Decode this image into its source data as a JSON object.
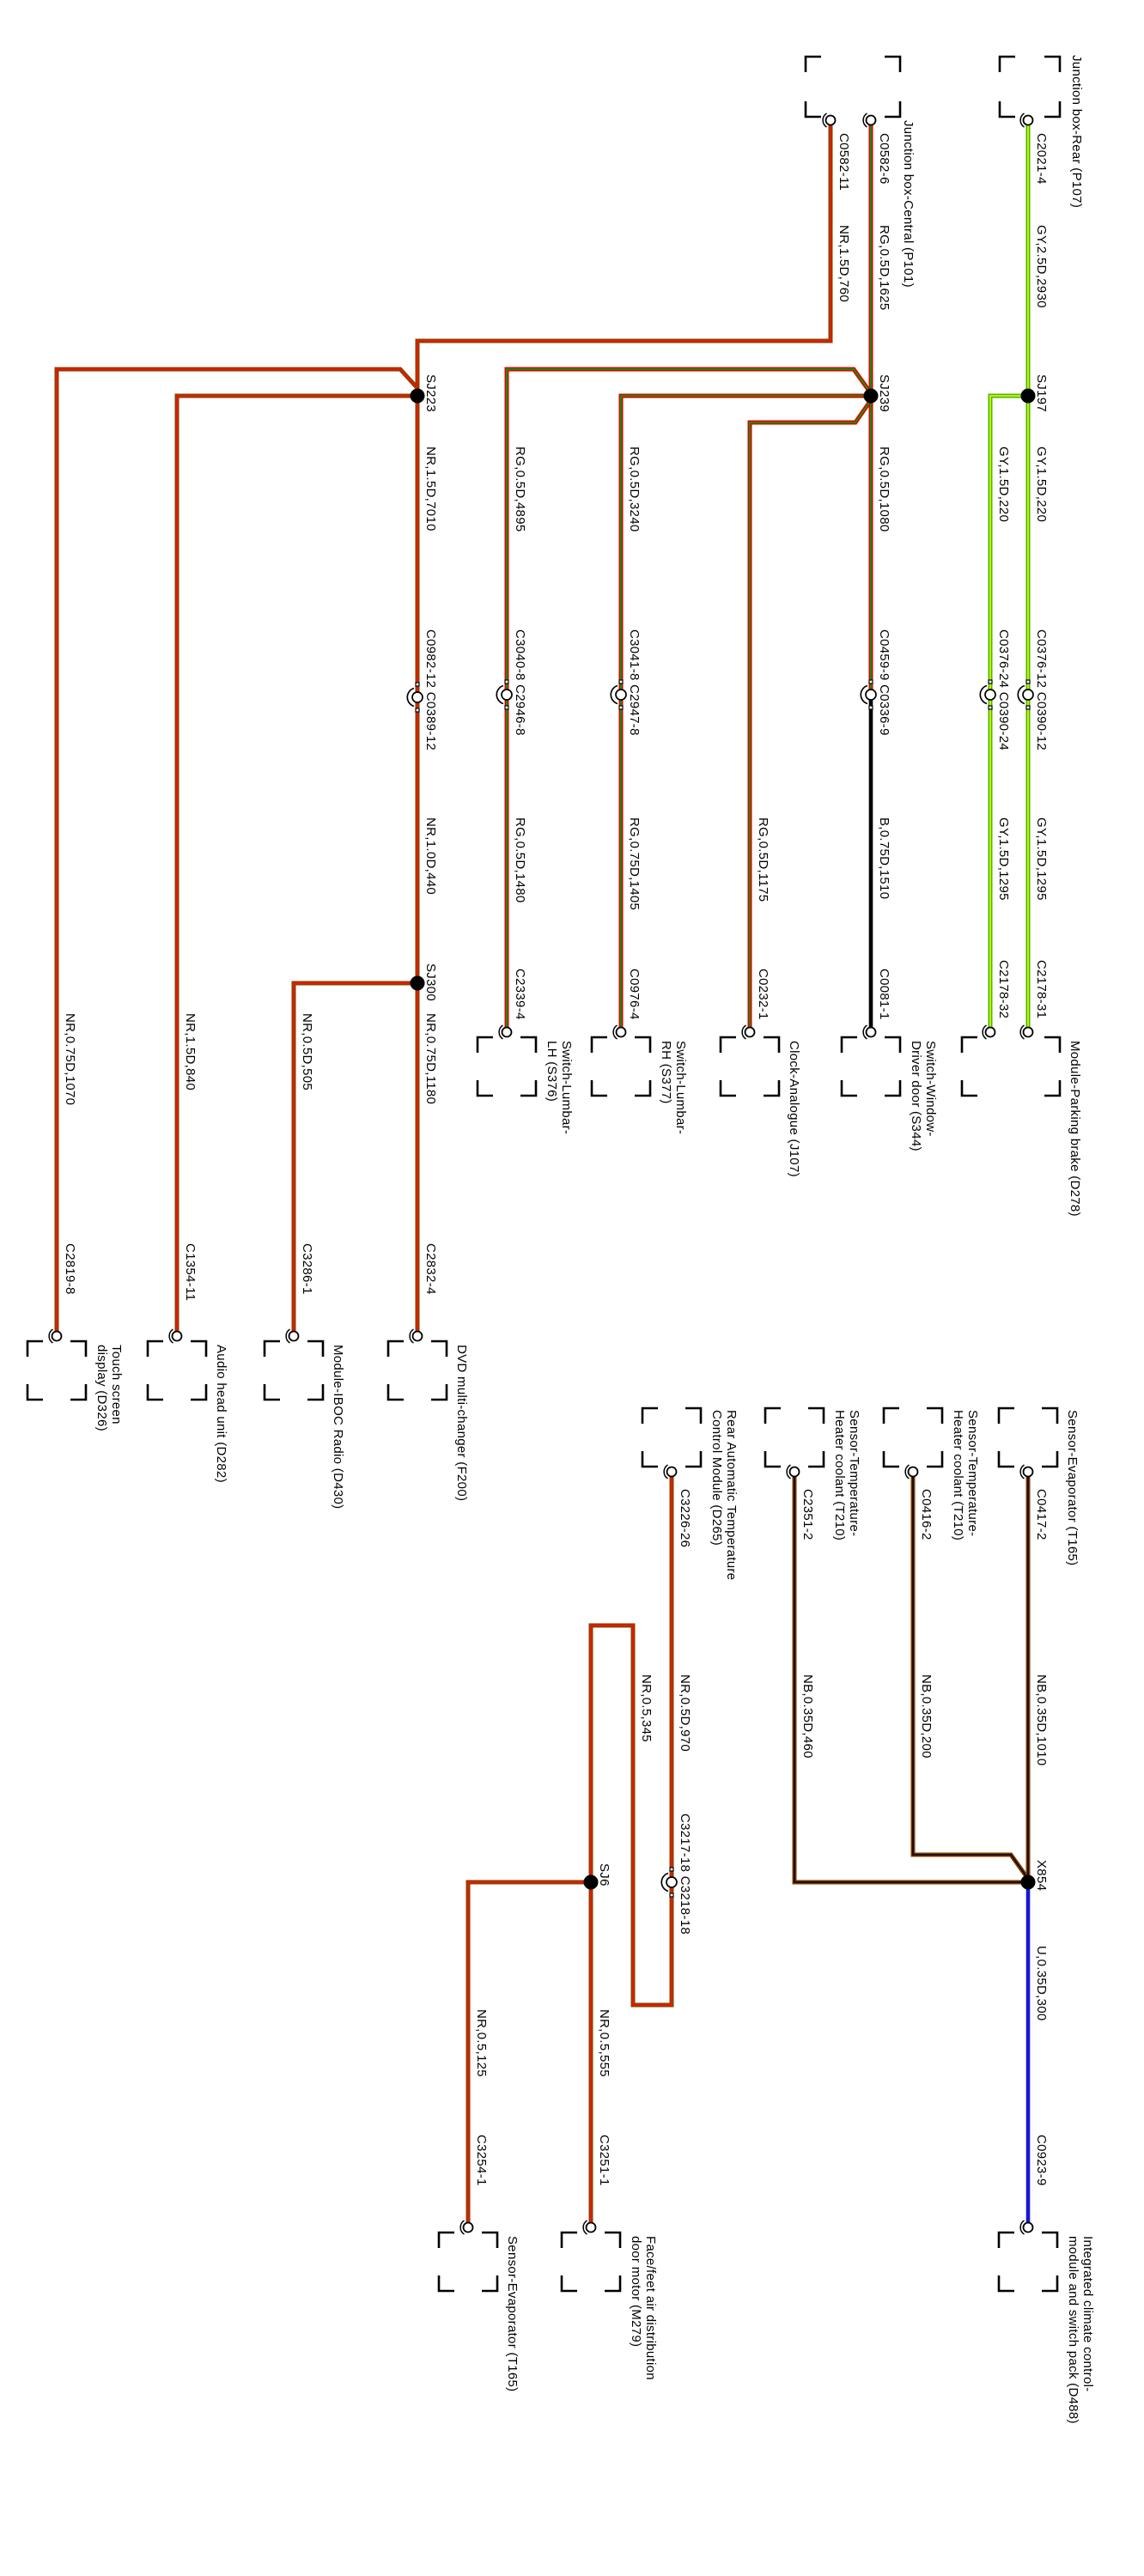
{
  "diagram_type": "automotive wiring diagram",
  "colors": {
    "wire_nr_outer": "#8B4000",
    "wire_nr_inner": "#E51A00",
    "wire_rg_outer": "#E00000",
    "wire_rg_inner": "#00A000",
    "wire_gy_outer": "#3CBE00",
    "wire_gy_inner": "#EAEA00",
    "wire_nb_outer": "#7B3A00",
    "wire_nb_inner": "#150800",
    "wire_b": "#000000",
    "wire_u": "#1616D6"
  },
  "components": {
    "p107": {
      "name": "Junction box-Rear (P107)",
      "connector": "C2021-4"
    },
    "p101": {
      "name": "Junction box-Central (P101)",
      "connector_a": "C0582-11",
      "connector_b": "C0582-6"
    },
    "d326": {
      "name_line1": "Touch screen",
      "name_line2": "display (D326)",
      "connector": "C2819-8"
    },
    "d282": {
      "name": "Audio head unit (D282)",
      "connector": "C1354-11"
    },
    "d430": {
      "name": "Module-IBOC Radio (D430)",
      "connector": "C3286-1"
    },
    "f200": {
      "name": "DVD multi-changer (F200)",
      "connector": "C2832-4"
    },
    "s376": {
      "name_line1": "Switch-Lumbar-",
      "name_line2": "LH (S376)",
      "connector": "C2339-4"
    },
    "s377": {
      "name_line1": "Switch-Lumbar-",
      "name_line2": "RH (S377)",
      "connector": "C0976-4"
    },
    "j107": {
      "name": "Clock-Analogue (J107)",
      "connector": "C0232-1"
    },
    "s344": {
      "name_line1": "Switch-Window-",
      "name_line2": "Driver door (S344)",
      "connector": "C0081-1"
    },
    "d278": {
      "name": "Module-Parking brake (D278)",
      "connector_a": "C2178-32",
      "connector_b": "C2178-31"
    },
    "d265": {
      "name_line1": "Rear Automatic Temperature",
      "name_line2": "Control Module (D265)",
      "connector": "C3226-26"
    },
    "t210_1": {
      "name_line1": "Sensor-Temperature-",
      "name_line2": "Heater coolant (T210)",
      "connector": "C2351-2"
    },
    "t210_2": {
      "name_line1": "Sensor-Temperature-",
      "name_line2": "Heater coolant (T210)",
      "connector": "C0416-2"
    },
    "t165_top": {
      "name": "Sensor-Evaporator (T165)",
      "connector": "C0417-2"
    },
    "t165_bottom": {
      "name": "Sensor-Evaporator (T165)",
      "connector": "C3254-1"
    },
    "m279": {
      "name_line1": "Face/feet air distribution",
      "name_line2": "door motor (M279)",
      "connector": "C3251-1"
    },
    "d488": {
      "name_line1": "Integrated climate control-",
      "name_line2": "module and switch pack (D488)",
      "connector": "C0923-9"
    }
  },
  "splices": {
    "sj223": "SJ223",
    "sj239": "SJ239",
    "sj197": "SJ197",
    "sj300": "SJ300",
    "sj6": "SJ6",
    "x854": "X854"
  },
  "inline_connectors": {
    "ic_c3040": "C3040-8 C2946-8",
    "ic_c3041": "C3041-8 C2947-8",
    "ic_c0459": "C0459-9 C0336-9",
    "ic_c0376_24": "C0376-24 C0390-24",
    "ic_c0376_12": "C0376-12 C0390-12",
    "ic_c0982": "C0982-12 C0389-12",
    "ic_c3217": "C3217-18 C3218-18"
  },
  "wire_labels": {
    "nr_760": "NR,1.5D,760",
    "rg_1625": "RG,0.5D,1625",
    "gy_2930": "GY,2.5D,2930",
    "nr_7010": "NR,1.5D,7010",
    "rg_4895": "RG,0.5D,4895",
    "rg_3240": "RG,0.5D,3240",
    "rg_1080": "RG,0.5D,1080",
    "gy_220_left": "GY,1.5D,220",
    "gy_220_right": "GY,1.5D,220",
    "nr_440": "NR,1.0D,440",
    "rg_1480": "RG,0.5D,1480",
    "rg_1405": "RG,0.75D,1405",
    "rg_1175": "RG,0.5D,1175",
    "b_1510": "B,0.75D,1510",
    "gy_1295_left": "GY,1.5D,1295",
    "gy_1295_right": "GY,1.5D,1295",
    "nr_1070": "NR,0.75D,1070",
    "nr_840": "NR,1.5D,840",
    "nr_505": "NR,0.5D,505",
    "nr_1180": "NR,0.75D,1180",
    "nr_970": "NR,0.5D,970",
    "nr_345": "NR,0.5,345",
    "nb_460": "NB,0.35D,460",
    "nb_200": "NB,0.35D,200",
    "nb_1010": "NB,0.35D,1010",
    "nr_555": "NR,0.5,555",
    "nr_125": "NR,0.5,125",
    "u_300": "U,0.35D,300"
  }
}
